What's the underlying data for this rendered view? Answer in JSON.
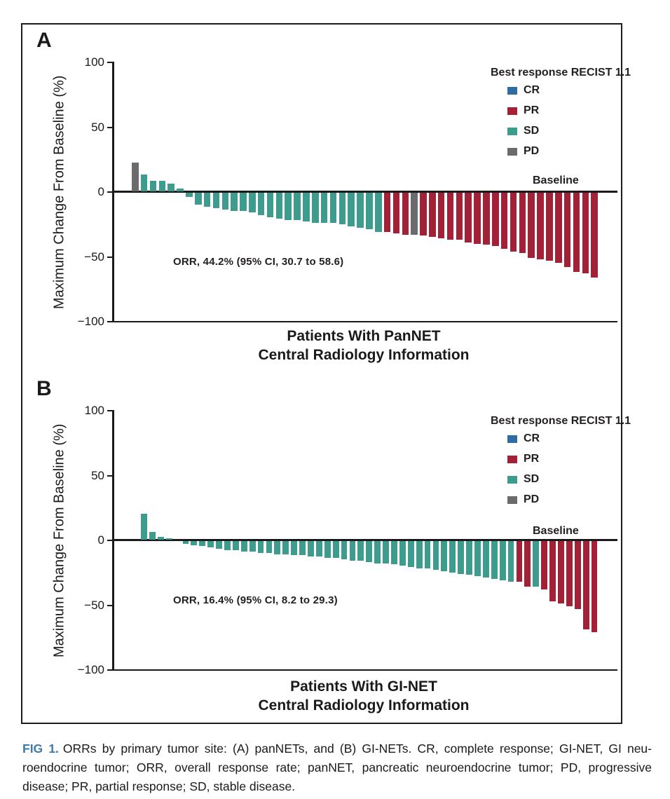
{
  "figure": {
    "colors": {
      "CR": "#2e6da4",
      "PR": "#a32136",
      "SD": "#3e9c8e",
      "PD": "#6b6b6e",
      "axis": "#1a1a1a",
      "fig_label_blue": "#3d7aa8"
    },
    "panels": [
      {
        "label": "A",
        "y_axis_label": "Maximum Change From Baseline (%)",
        "y_ticks": [
          "100",
          "50",
          "0",
          "−50",
          "−100"
        ],
        "legend_title": "Best response RECIST 1.1",
        "legend_items": [
          {
            "label": "CR",
            "color": "#2e6da4"
          },
          {
            "label": "PR",
            "color": "#a32136"
          },
          {
            "label": "SD",
            "color": "#3e9c8e"
          },
          {
            "label": "PD",
            "color": "#6b6b6e"
          }
        ],
        "orr_text": "ORR, 44.2% (95% CI, 30.7 to 58.6)",
        "baseline_label": "Baseline",
        "x_title_line1": "Patients With PanNET",
        "x_title_line2": "Central Radiology Information"
      },
      {
        "label": "B",
        "y_axis_label": "Maximum Change From Baseline (%)",
        "y_ticks": [
          "100",
          "50",
          "0",
          "−50",
          "−100"
        ],
        "legend_title": "Best response RECIST 1.1",
        "legend_items": [
          {
            "label": "CR",
            "color": "#2e6da4"
          },
          {
            "label": "PR",
            "color": "#a32136"
          },
          {
            "label": "SD",
            "color": "#3e9c8e"
          },
          {
            "label": "PD",
            "color": "#6b6b6e"
          }
        ],
        "orr_text": "ORR, 16.4% (95% CI, 8.2 to 29.3)",
        "baseline_label": "Baseline",
        "x_title_line1": "Patients With GI-NET",
        "x_title_line2": "Central Radiology Information"
      }
    ],
    "caption": {
      "fig_label": "FIG 1.",
      "lines": [
        "ORRs by primary tumor site: (A) panNETs, and (B) GI-NETs. CR, complete response; GI-NET, GI neu-",
        "roendocrine tumor; ORR, overall response rate; panNET, pancreatic neuroendocrine tumor; PD, progressive",
        "disease; PR, partial response; SD, stable disease."
      ]
    }
  },
  "chart_data": [
    {
      "type": "bar",
      "subtype": "waterfall",
      "title": "Patients With PanNET — Central Radiology Information",
      "ylabel": "Maximum Change From Baseline (%)",
      "ylim": [
        -100,
        100
      ],
      "y_ticks": [
        100,
        50,
        0,
        -50,
        -100
      ],
      "grid": false,
      "legend_position": "top-right",
      "legend_title": "Best response RECIST 1.1",
      "annotation": "ORR, 44.2% (95% CI, 30.7 to 58.6)",
      "baseline_annotation": "Baseline",
      "n_patients": 52,
      "bars": [
        {
          "r": "PD",
          "v": 22
        },
        {
          "r": "SD",
          "v": 13
        },
        {
          "r": "SD",
          "v": 8
        },
        {
          "r": "SD",
          "v": 8
        },
        {
          "r": "SD",
          "v": 6
        },
        {
          "r": "SD",
          "v": 2
        },
        {
          "r": "SD",
          "v": -3
        },
        {
          "r": "SD",
          "v": -9
        },
        {
          "r": "SD",
          "v": -11
        },
        {
          "r": "SD",
          "v": -12
        },
        {
          "r": "SD",
          "v": -13
        },
        {
          "r": "SD",
          "v": -14
        },
        {
          "r": "SD",
          "v": -14
        },
        {
          "r": "SD",
          "v": -15
        },
        {
          "r": "SD",
          "v": -17
        },
        {
          "r": "SD",
          "v": -19
        },
        {
          "r": "SD",
          "v": -20
        },
        {
          "r": "SD",
          "v": -21
        },
        {
          "r": "SD",
          "v": -21
        },
        {
          "r": "SD",
          "v": -22
        },
        {
          "r": "SD",
          "v": -23
        },
        {
          "r": "SD",
          "v": -23
        },
        {
          "r": "SD",
          "v": -23
        },
        {
          "r": "SD",
          "v": -24
        },
        {
          "r": "SD",
          "v": -26
        },
        {
          "r": "SD",
          "v": -27
        },
        {
          "r": "SD",
          "v": -28
        },
        {
          "r": "SD",
          "v": -30
        },
        {
          "r": "PR",
          "v": -30
        },
        {
          "r": "PR",
          "v": -31
        },
        {
          "r": "PR",
          "v": -32
        },
        {
          "r": "PD",
          "v": -32
        },
        {
          "r": "PR",
          "v": -33
        },
        {
          "r": "PR",
          "v": -34
        },
        {
          "r": "PR",
          "v": -35
        },
        {
          "r": "PR",
          "v": -36
        },
        {
          "r": "PR",
          "v": -36
        },
        {
          "r": "PR",
          "v": -38
        },
        {
          "r": "PR",
          "v": -39
        },
        {
          "r": "PR",
          "v": -40
        },
        {
          "r": "PR",
          "v": -41
        },
        {
          "r": "PR",
          "v": -43
        },
        {
          "r": "PR",
          "v": -45
        },
        {
          "r": "PR",
          "v": -46
        },
        {
          "r": "PR",
          "v": -50
        },
        {
          "r": "PR",
          "v": -51
        },
        {
          "r": "PR",
          "v": -52
        },
        {
          "r": "PR",
          "v": -54
        },
        {
          "r": "PR",
          "v": -57
        },
        {
          "r": "PR",
          "v": -61
        },
        {
          "r": "PR",
          "v": -62
        },
        {
          "r": "PR",
          "v": -65
        }
      ]
    },
    {
      "type": "bar",
      "subtype": "waterfall",
      "title": "Patients With GI-NET — Central Radiology Information",
      "ylabel": "Maximum Change From Baseline (%)",
      "ylim": [
        -100,
        100
      ],
      "y_ticks": [
        100,
        50,
        0,
        -50,
        -100
      ],
      "grid": false,
      "legend_position": "top-right",
      "legend_title": "Best response RECIST 1.1",
      "annotation": "ORR, 16.4% (95% CI, 8.2 to 29.3)",
      "baseline_annotation": "Baseline",
      "n_patients": 55,
      "bars": [
        {
          "r": "SD",
          "v": 20
        },
        {
          "r": "SD",
          "v": 6
        },
        {
          "r": "SD",
          "v": 2
        },
        {
          "r": "SD",
          "v": 1
        },
        {
          "r": "SD",
          "v": 0
        },
        {
          "r": "SD",
          "v": -2
        },
        {
          "r": "SD",
          "v": -3
        },
        {
          "r": "SD",
          "v": -4
        },
        {
          "r": "SD",
          "v": -5
        },
        {
          "r": "SD",
          "v": -6
        },
        {
          "r": "SD",
          "v": -7
        },
        {
          "r": "SD",
          "v": -7
        },
        {
          "r": "SD",
          "v": -8
        },
        {
          "r": "SD",
          "v": -8
        },
        {
          "r": "SD",
          "v": -9
        },
        {
          "r": "SD",
          "v": -9
        },
        {
          "r": "SD",
          "v": -10
        },
        {
          "r": "SD",
          "v": -10
        },
        {
          "r": "SD",
          "v": -11
        },
        {
          "r": "SD",
          "v": -11
        },
        {
          "r": "SD",
          "v": -12
        },
        {
          "r": "SD",
          "v": -12
        },
        {
          "r": "SD",
          "v": -13
        },
        {
          "r": "SD",
          "v": -13
        },
        {
          "r": "SD",
          "v": -14
        },
        {
          "r": "SD",
          "v": -15
        },
        {
          "r": "SD",
          "v": -15
        },
        {
          "r": "SD",
          "v": -16
        },
        {
          "r": "SD",
          "v": -17
        },
        {
          "r": "SD",
          "v": -17
        },
        {
          "r": "SD",
          "v": -18
        },
        {
          "r": "SD",
          "v": -19
        },
        {
          "r": "SD",
          "v": -20
        },
        {
          "r": "SD",
          "v": -21
        },
        {
          "r": "SD",
          "v": -21
        },
        {
          "r": "SD",
          "v": -22
        },
        {
          "r": "SD",
          "v": -23
        },
        {
          "r": "SD",
          "v": -24
        },
        {
          "r": "SD",
          "v": -25
        },
        {
          "r": "SD",
          "v": -26
        },
        {
          "r": "SD",
          "v": -27
        },
        {
          "r": "SD",
          "v": -28
        },
        {
          "r": "SD",
          "v": -29
        },
        {
          "r": "SD",
          "v": -30
        },
        {
          "r": "SD",
          "v": -31
        },
        {
          "r": "PR",
          "v": -31
        },
        {
          "r": "PR",
          "v": -35
        },
        {
          "r": "SD",
          "v": -35
        },
        {
          "r": "PR",
          "v": -37
        },
        {
          "r": "PR",
          "v": -46
        },
        {
          "r": "PR",
          "v": -48
        },
        {
          "r": "PR",
          "v": -50
        },
        {
          "r": "PR",
          "v": -52
        },
        {
          "r": "PR",
          "v": -68
        },
        {
          "r": "PR",
          "v": -70
        }
      ]
    }
  ]
}
